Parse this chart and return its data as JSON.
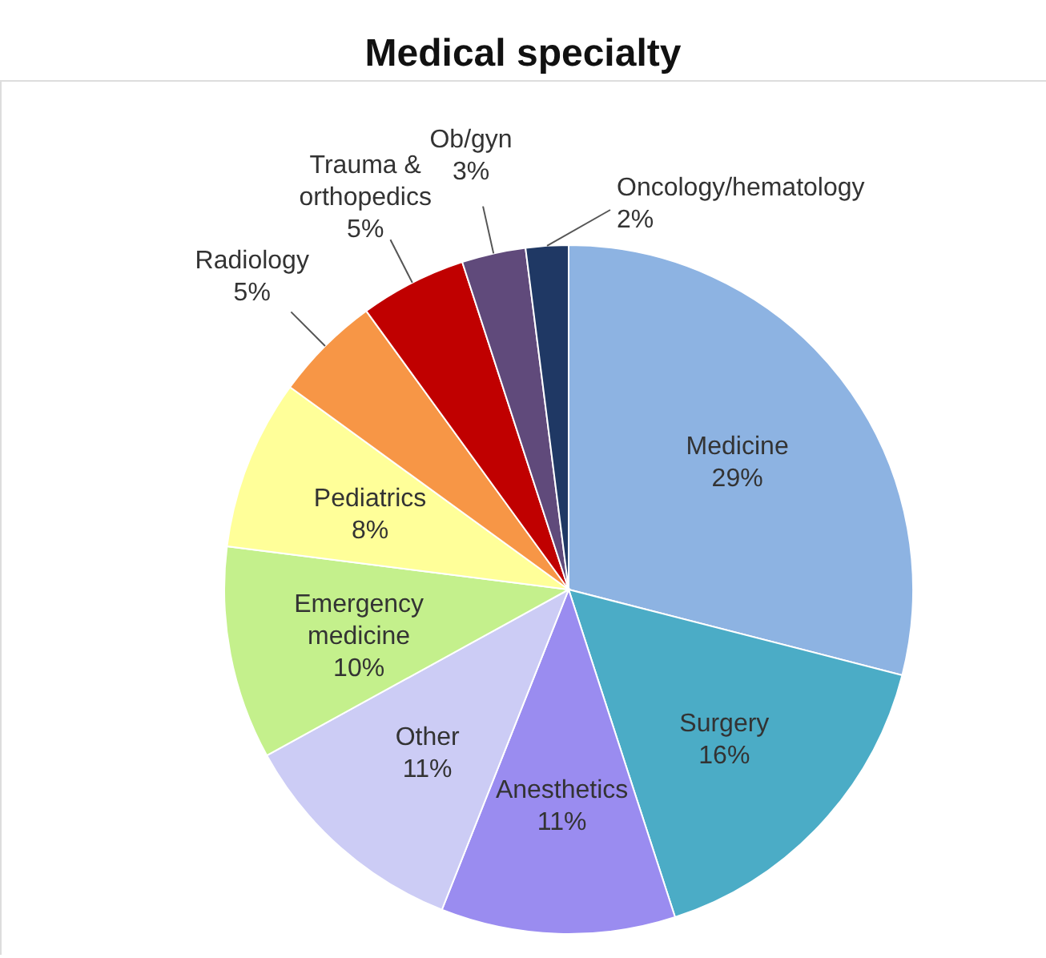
{
  "chart_data": {
    "type": "pie",
    "title": "Medical specialty",
    "categories": [
      "Medicine",
      "Surgery",
      "Anesthetics",
      "Other",
      "Emergency medicine",
      "Pediatrics",
      "Radiology",
      "Trauma & orthopedics",
      "Ob/gyn",
      "Oncology/hematology"
    ],
    "values": [
      29,
      16,
      11,
      11,
      10,
      8,
      5,
      5,
      3,
      2
    ],
    "colors": [
      "#8db3e2",
      "#4bacc6",
      "#9a8cf0",
      "#ccccf5",
      "#c4f08c",
      "#ffff99",
      "#f79646",
      "#c00000",
      "#604a7b",
      "#1f3864"
    ],
    "value_labels": [
      "29%",
      "16%",
      "11%",
      "11%",
      "10%",
      "8%",
      "5%",
      "5%",
      "3%",
      "2%"
    ]
  }
}
